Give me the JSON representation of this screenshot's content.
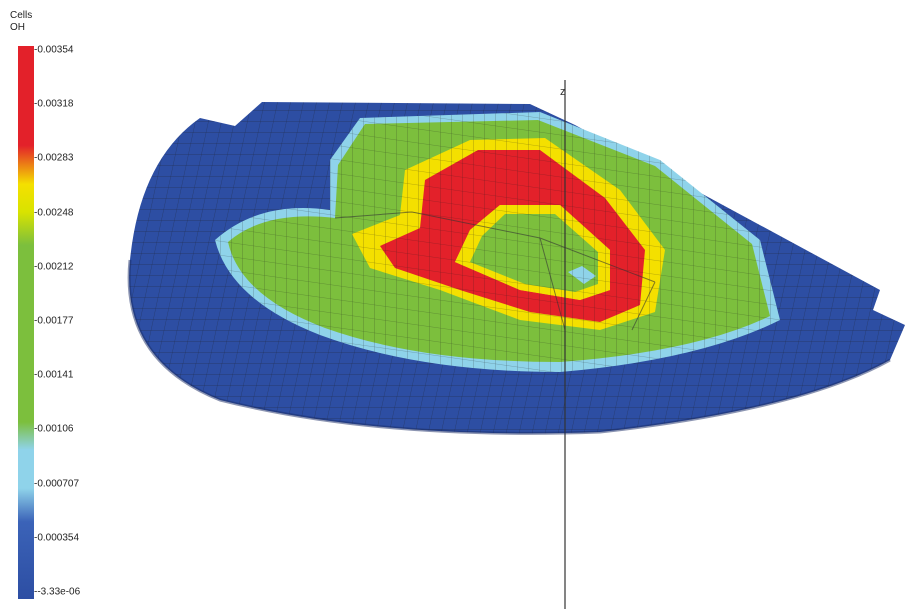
{
  "legend": {
    "title_line1": "Cells",
    "title_line2": "OH",
    "ticks": [
      "0.00354",
      "0.00318",
      "0.00283",
      "0.00248",
      "0.00212",
      "0.00177",
      "0.00141",
      "0.00106",
      "0.000707",
      "0.000354",
      "-3.33e-06"
    ],
    "colors": {
      "max": "#e3212a",
      "high": "#f4e000",
      "mid": "#7cbf3d",
      "low": "#8fd3ea",
      "min": "#2d4ea3"
    }
  },
  "axis": {
    "z_label": "z"
  }
}
